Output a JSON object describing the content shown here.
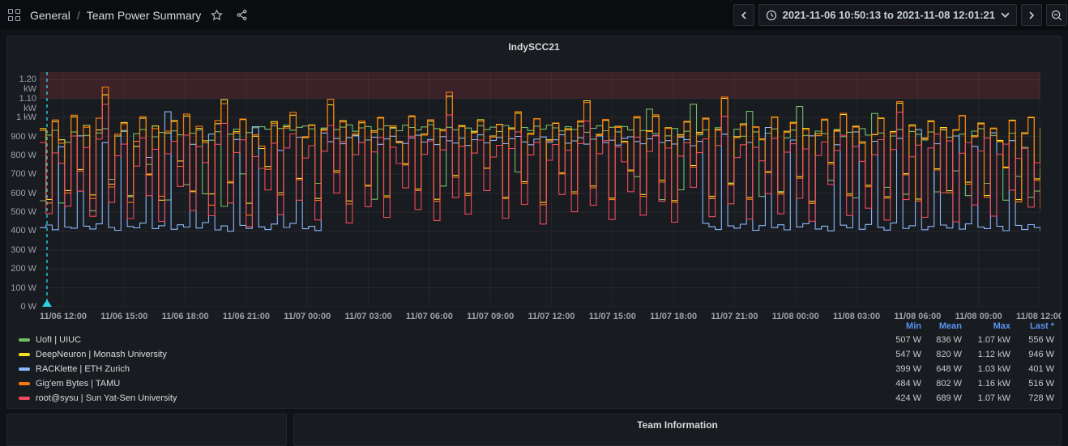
{
  "topbar": {
    "breadcrumb": {
      "folder": "General",
      "separator": "/",
      "title": "Team Power Summary"
    },
    "time_range": {
      "label": "2021-11-06 10:50:13 to 2021-11-08 12:01:21"
    }
  },
  "panel": {
    "title": "IndySCC21"
  },
  "bottom_panels": {
    "right_title": "Team Information"
  },
  "chart_data": {
    "type": "line",
    "title": "IndySCC21",
    "x_start": "2021-11-06 10:50:13",
    "x_end": "2021-11-08 12:01:21",
    "x_ticks": [
      "11/06 12:00",
      "11/06 15:00",
      "11/06 18:00",
      "11/06 21:00",
      "11/07 00:00",
      "11/07 03:00",
      "11/07 06:00",
      "11/07 09:00",
      "11/07 12:00",
      "11/07 15:00",
      "11/07 18:00",
      "11/07 21:00",
      "11/08 00:00",
      "11/08 03:00",
      "11/08 06:00",
      "11/08 09:00",
      "11/08 12:00"
    ],
    "y_ticks": [
      "0 W",
      "100 W",
      "200 W",
      "300 W",
      "400 W",
      "500 W",
      "600 W",
      "700 W",
      "800 W",
      "900 W",
      "1 kW",
      "1.10 kW",
      "1.20 kW"
    ],
    "y_tick_values": [
      0,
      100,
      200,
      300,
      400,
      500,
      600,
      700,
      800,
      900,
      1000,
      1100,
      1200
    ],
    "ylim": [
      0,
      1240
    ],
    "unit": "watts",
    "grid": true,
    "legend_position": "bottom",
    "threshold_region": {
      "from": 1100,
      "to": 1240,
      "color": "rgba(242,73,92,0.16)"
    },
    "annotation_line": {
      "position_frac": 0.0073,
      "color": "#2BD1E4",
      "style": "dashed"
    },
    "stats_columns": [
      "Min",
      "Mean",
      "Max",
      "Last *"
    ],
    "series": [
      {
        "name": "UofI | UIUC",
        "color": "#73BF69",
        "stats": {
          "min": "507 W",
          "mean": "836 W",
          "max": "1.07 kW",
          "last": "556 W"
        },
        "values": [
          560,
          907,
          932,
          548,
          869,
          923,
          611,
          905,
          507,
          918,
          941,
          673,
          902,
          926,
          588,
          914,
          936,
          752,
          898,
          921,
          564,
          929,
          908,
          645,
          917,
          934,
          597,
          880,
          925,
          530,
          912,
          938,
          702,
          920,
          946,
          951,
          938,
          957,
          942,
          960,
          933,
          948,
          955,
          940,
          652,
          944,
          958,
          936,
          949,
          961,
          927,
          945,
          952,
          568,
          939,
          956,
          943,
          930,
          959,
          947,
          934,
          950,
          962,
          941,
          638,
          948,
          935,
          953,
          944,
          928,
          957,
          936,
          949,
          926,
          958,
          940,
          712,
          947,
          931,
          954,
          938,
          960,
          945,
          929,
          951,
          937,
          955,
          922,
          943,
          956,
          930,
          948,
          924,
          952,
          934,
          687,
          931,
          1044,
          915,
          566,
          903,
          942,
          618,
          927,
          1070,
          908,
          935,
          571,
          946,
          912,
          654,
          938,
          901,
          1032,
          924,
          583,
          917,
          940,
          609,
          892,
          933,
          1058,
          905,
          547,
          928,
          914,
          668,
          936,
          899,
          922,
          575,
          941,
          907,
          1021,
          918,
          631,
          902,
          937,
          594,
          926,
          911,
          881,
          923,
          607,
          934,
          896,
          718,
          912,
          587,
          928,
          941,
          652,
          905,
          874,
          563,
          917,
          689,
          842,
          578,
          611,
          556
        ]
      },
      {
        "name": "DeepNeuron | Monash University",
        "color": "#FADE2A",
        "stats": {
          "min": "547 W",
          "mean": "820 W",
          "max": "1.12 kW",
          "last": "946 W"
        },
        "values": [
          941,
          567,
          978,
          882,
          614,
          1003,
          725,
          958,
          591,
          934,
          1120,
          648,
          902,
          973,
          582,
          847,
          996,
          701,
          955,
          563,
          918,
          984,
          770,
          1008,
          611,
          943,
          877,
          596,
          967,
          1094,
          655,
          925,
          989,
          547,
          901,
          836,
          741,
          978,
          603,
          952,
          1012,
          678,
          894,
          961,
          572,
          938,
          1067,
          718,
          983,
          559,
          906,
          972,
          641,
          929,
          997,
          586,
          948,
          867,
          755,
          1005,
          622,
          913,
          981,
          568,
          936,
          1112,
          694,
          957,
          599,
          924,
          988,
          733,
          902,
          964,
          578,
          945,
          1023,
          661,
          917,
          993,
          551,
          882,
          969,
          707,
          940,
          607,
          976,
          1088,
          638,
          911,
          985,
          574,
          953,
          874,
          722,
          998,
          593,
          930,
          1006,
          669,
          946,
          561,
          908,
          979,
          746,
          921,
          992,
          584,
          937,
          1101,
          651,
          899,
          966,
          577,
          949,
          886,
          714,
          1001,
          604,
          927,
          974,
          687,
          943,
          557,
          915,
          987,
          763,
          932,
          1015,
          596,
          954,
          871,
          642,
          909,
          995,
          581,
          926,
          1076,
          703,
          961,
          569,
          891,
          982,
          729,
          947,
          613,
          935,
          1009,
          658,
          903,
          970,
          588,
          941,
          879,
          738,
          986,
          566,
          919,
          999,
          676,
          946
        ]
      },
      {
        "name": "RACKlette | ETH Zurich",
        "color": "#8AB8FF",
        "stats": {
          "min": "399 W",
          "mean": "648 W",
          "max": "1.03 kW",
          "last": "401 W"
        },
        "values": [
          418,
          432,
          407,
          845,
          421,
          415,
          903,
          426,
          411,
          438,
          867,
          419,
          404,
          931,
          424,
          417,
          442,
          789,
          413,
          428,
          1030,
          409,
          433,
          421,
          858,
          416,
          445,
          912,
          406,
          427,
          399,
          884,
          430,
          414,
          951,
          422,
          408,
          437,
          826,
          419,
          441,
          896,
          412,
          425,
          403,
          918,
          872,
          889,
          861,
          894,
          903,
          868,
          881,
          896,
          858,
          887,
          901,
          874,
          863,
          892,
          906,
          870,
          884,
          857,
          899,
          877,
          865,
          891,
          852,
          883,
          908,
          866,
          879,
          895,
          862,
          888,
          900,
          871,
          856,
          886,
          897,
          869,
          882,
          909,
          864,
          876,
          893,
          859,
          885,
          902,
          867,
          880,
          854,
          890,
          898,
          873,
          861,
          887,
          905,
          868,
          878,
          860,
          896,
          883,
          851,
          874,
          441,
          423,
          408,
          912,
          427,
          415,
          436,
          868,
          404,
          429,
          947,
          418,
          433,
          406,
          881,
          422,
          439,
          903,
          411,
          426,
          401,
          856,
          431,
          417,
          924,
          409,
          435,
          874,
          420,
          405,
          443,
          889,
          414,
          428,
          936,
          407,
          424,
          861,
          432,
          416,
          902,
          410,
          438,
          847,
          421,
          413,
          919,
          425,
          402,
          878,
          430,
          408,
          434,
          419,
          401
        ]
      },
      {
        "name": "Gig'em Bytes | TAMU",
        "color": "#FF780A",
        "stats": {
          "min": "484 W",
          "mean": "802 W",
          "max": "1.16 kW",
          "last": "516 W"
        },
        "values": [
          931,
          548,
          987,
          864,
          601,
          1012,
          717,
          948,
          572,
          996,
          1160,
          633,
          912,
          967,
          551,
          874,
          1004,
          696,
          941,
          584,
          928,
          978,
          742,
          1018,
          607,
          953,
          866,
          537,
          984,
          1073,
          662,
          917,
          992,
          484,
          908,
          849,
          726,
          969,
          591,
          944,
          1027,
          671,
          899,
          958,
          562,
          931,
          1096,
          708,
          976,
          543,
          914,
          981,
          637,
          922,
          1001,
          578,
          956,
          871,
          749,
          1009,
          614,
          907,
          988,
          557,
          929,
          1133,
          684,
          951,
          589,
          918,
          979,
          731,
          896,
          962,
          571,
          938,
          1031,
          653,
          909,
          994,
          539,
          877,
          971,
          702,
          934,
          597,
          983,
          1079,
          628,
          905,
          989,
          566,
          947,
          868,
          716,
          1006,
          583,
          926,
          1014,
          659,
          942,
          552,
          901,
          975,
          738,
          915,
          997,
          574,
          933,
          1108,
          644,
          893,
          959,
          568,
          951,
          882,
          709,
          1003,
          595,
          921,
          968,
          679,
          936,
          546,
          904,
          991,
          754,
          927,
          1022,
          587,
          949,
          863,
          634,
          911,
          998,
          573,
          919,
          1084,
          697,
          954,
          559,
          886,
          977,
          723,
          940,
          602,
          932,
          1011,
          648,
          897,
          965,
          579,
          944,
          872,
          733,
          982,
          554,
          913,
          1002,
          668,
          516
        ]
      },
      {
        "name": "root@sysu | Sun Yat-Sen University",
        "color": "#F2495C",
        "stats": {
          "min": "424 W",
          "mean": "689 W",
          "max": "1.07 kW",
          "last": "728 W"
        },
        "values": [
          867,
          492,
          813,
          758,
          531,
          902,
          611,
          841,
          478,
          886,
          1070,
          552,
          798,
          859,
          466,
          743,
          891,
          587,
          832,
          451,
          808,
          874,
          636,
          907,
          509,
          846,
          762,
          481,
          858,
          969,
          548,
          815,
          882,
          424,
          793,
          731,
          617,
          864,
          487,
          839,
          913,
          563,
          786,
          851,
          459,
          822,
          958,
          601,
          872,
          443,
          804,
          867,
          529,
          818,
          894,
          472,
          843,
          757,
          628,
          901,
          514,
          806,
          876,
          456,
          829,
          1013,
          577,
          848,
          489,
          812,
          881,
          614,
          791,
          853,
          468,
          836,
          924,
          541,
          802,
          869,
          437,
          774,
          857,
          593,
          827,
          502,
          862,
          981,
          536,
          809,
          878,
          461,
          844,
          766,
          608,
          896,
          484,
          821,
          903,
          557,
          838,
          447,
          796,
          866,
          631,
          814,
          887,
          476,
          852,
          1006,
          544,
          788,
          856,
          463,
          842,
          771,
          598,
          889,
          491,
          817,
          861,
          573,
          834,
          452,
          799,
          871,
          646,
          826,
          906,
          482,
          847,
          768,
          521,
          803,
          883,
          458,
          831,
          1028,
          566,
          792,
          854,
          473,
          839,
          912,
          603,
          876,
          449,
          811,
          868,
          538,
          823,
          891,
          479,
          806,
          859,
          616,
          784,
          837,
          527,
          761,
          728
        ]
      }
    ]
  }
}
